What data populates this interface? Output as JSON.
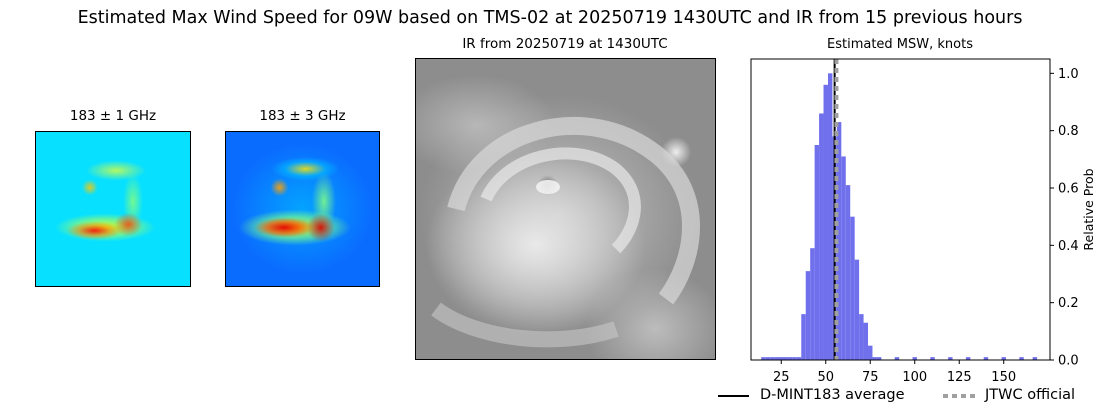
{
  "title": "Estimated Max Wind Speed for 09W based on TMS-02 at 20250719 1430UTC and IR from 15 previous hours",
  "panels": {
    "mw1_title": "183 ± 1 GHz",
    "mw2_title": "183 ± 3 GHz",
    "ir_title": "IR from 20250719 at 1430UTC",
    "hist_title": "Estimated MSW, knots"
  },
  "legend": {
    "average_label": "D-MINT183 average",
    "official_label": "JTWC official"
  },
  "colors": {
    "bars": "#7070ec",
    "average_line": "#000000",
    "official_line": "#a0a0a0"
  },
  "chart_data": {
    "type": "bar",
    "title": "Estimated MSW, knots",
    "xlabel": "",
    "ylabel": "Relative Prob",
    "xlim": [
      8,
      176
    ],
    "ylim": [
      0,
      1.05
    ],
    "xticks": [
      25,
      50,
      75,
      100,
      125,
      150
    ],
    "yticks": [
      0.0,
      0.2,
      0.4,
      0.6,
      0.8,
      1.0
    ],
    "ytick_side": "right",
    "bin_width": 2.5,
    "bins": [
      {
        "x": 15,
        "y": 0.01
      },
      {
        "x": 17.5,
        "y": 0.01
      },
      {
        "x": 20,
        "y": 0.01
      },
      {
        "x": 22.5,
        "y": 0.01
      },
      {
        "x": 25,
        "y": 0.01
      },
      {
        "x": 27.5,
        "y": 0.01
      },
      {
        "x": 30,
        "y": 0.01
      },
      {
        "x": 32.5,
        "y": 0.01
      },
      {
        "x": 35,
        "y": 0.01
      },
      {
        "x": 37.5,
        "y": 0.16
      },
      {
        "x": 40,
        "y": 0.31
      },
      {
        "x": 42.5,
        "y": 0.39
      },
      {
        "x": 45,
        "y": 0.75
      },
      {
        "x": 47.5,
        "y": 0.86
      },
      {
        "x": 50,
        "y": 0.96
      },
      {
        "x": 52.5,
        "y": 1.0
      },
      {
        "x": 55,
        "y": 0.78
      },
      {
        "x": 57.5,
        "y": 0.83
      },
      {
        "x": 60,
        "y": 0.71
      },
      {
        "x": 62.5,
        "y": 0.61
      },
      {
        "x": 65,
        "y": 0.5
      },
      {
        "x": 67.5,
        "y": 0.35
      },
      {
        "x": 70,
        "y": 0.16
      },
      {
        "x": 72.5,
        "y": 0.13
      },
      {
        "x": 75,
        "y": 0.05
      },
      {
        "x": 77.5,
        "y": 0.01
      },
      {
        "x": 80,
        "y": 0.01
      },
      {
        "x": 90,
        "y": 0.01
      },
      {
        "x": 100,
        "y": 0.01
      },
      {
        "x": 110,
        "y": 0.01
      },
      {
        "x": 120,
        "y": 0.01
      },
      {
        "x": 130,
        "y": 0.01
      },
      {
        "x": 140,
        "y": 0.01
      },
      {
        "x": 150,
        "y": 0.01
      },
      {
        "x": 160,
        "y": 0.01
      },
      {
        "x": 167.5,
        "y": 0.01
      }
    ],
    "average": 55,
    "official": 56,
    "grid": false,
    "legend_placement": "bottom-right"
  }
}
